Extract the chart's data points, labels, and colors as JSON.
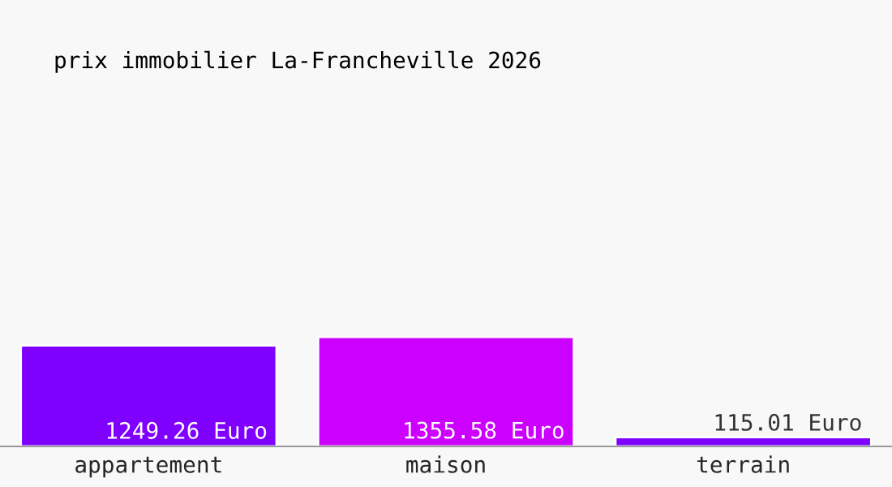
{
  "chart_data": {
    "type": "bar",
    "title": "prix immobilier La-Francheville 2026",
    "categories": [
      "appartement",
      "maison",
      "terrain"
    ],
    "values": [
      1249.26,
      1355.58,
      115.01
    ],
    "colors": [
      "#7f00ff",
      "#cc00ff",
      "#7f00ff"
    ],
    "value_labels": [
      "1249.26 Euro",
      "1355.58 Euro",
      "115.01 Euro"
    ],
    "grid": false,
    "legend": false
  }
}
